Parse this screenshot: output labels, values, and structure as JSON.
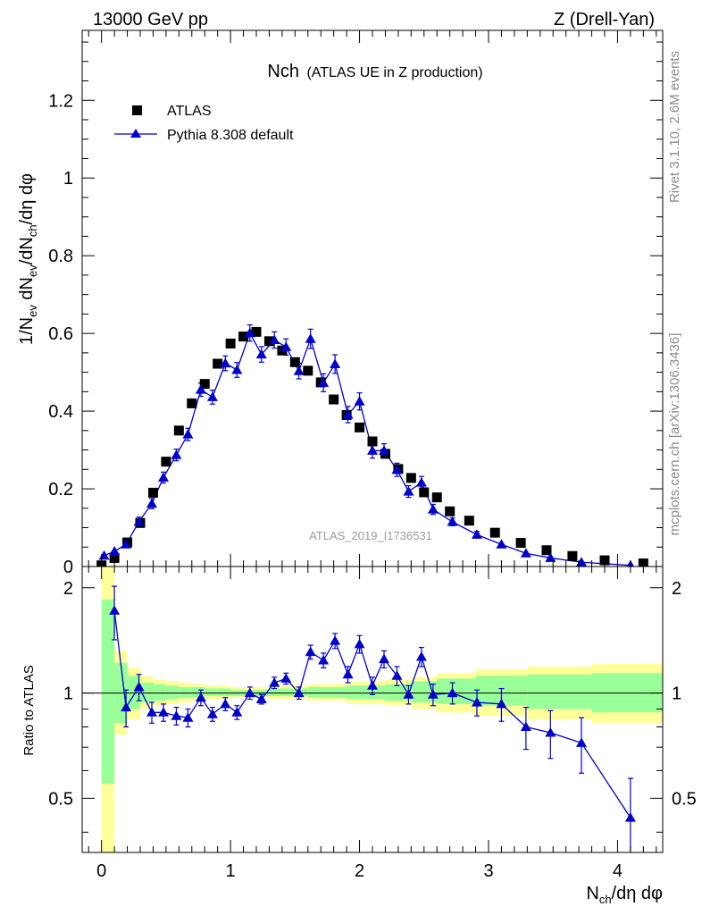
{
  "header": {
    "left": "13000 GeV pp",
    "right": "Z (Drell-Yan)"
  },
  "side_text": {
    "rivet": "Rivet 3.1.10,  2.6M events",
    "mcplots": "mcplots.cern.ch [arXiv:1306.3436]"
  },
  "chart_data": {
    "type": "scatter",
    "title": "Nch",
    "subtitle": "(ATLAS UE in Z production)",
    "watermark": "ATLAS_2019_I1736531",
    "xlabel": "N_ch/dη dφ",
    "ylabel": "1/N_ev dN_ev/dN_ch/dη dφ",
    "ratio_ylabel": "Ratio to ATLAS",
    "xlim": [
      -0.15,
      4.35
    ],
    "ylim": [
      0,
      1.38
    ],
    "ratio_ylim": [
      0.35,
      2.3
    ],
    "ratio_scale": "log",
    "x_ticks": [
      0,
      1,
      2,
      3,
      4
    ],
    "y_ticks": [
      0,
      0.2,
      0.4,
      0.6,
      0.8,
      1,
      1.2
    ],
    "ratio_ticks": [
      0.5,
      1,
      2
    ],
    "legend_position": "top-left",
    "colors": {
      "data": "#000000",
      "mc": "#0000cc",
      "band_inner": "#99ff99",
      "band_outer": "#ffff99"
    },
    "series": [
      {
        "name": "ATLAS",
        "style": "black squares",
        "points": [
          [
            0.0,
            0.003
          ],
          [
            0.1,
            0.022
          ],
          [
            0.2,
            0.062
          ],
          [
            0.3,
            0.112
          ],
          [
            0.4,
            0.19
          ],
          [
            0.5,
            0.27
          ],
          [
            0.6,
            0.35
          ],
          [
            0.7,
            0.42
          ],
          [
            0.8,
            0.47
          ],
          [
            0.9,
            0.522
          ],
          [
            1.0,
            0.574
          ],
          [
            1.1,
            0.592
          ],
          [
            1.2,
            0.604
          ],
          [
            1.3,
            0.58
          ],
          [
            1.4,
            0.556
          ],
          [
            1.5,
            0.526
          ],
          [
            1.6,
            0.504
          ],
          [
            1.7,
            0.474
          ],
          [
            1.8,
            0.43
          ],
          [
            1.9,
            0.39
          ],
          [
            2.0,
            0.358
          ],
          [
            2.1,
            0.322
          ],
          [
            2.2,
            0.29
          ],
          [
            2.3,
            0.251
          ],
          [
            2.4,
            0.228
          ],
          [
            2.5,
            0.191
          ],
          [
            2.6,
            0.178
          ],
          [
            2.7,
            0.142
          ],
          [
            2.85,
            0.118
          ],
          [
            3.05,
            0.087
          ],
          [
            3.25,
            0.061
          ],
          [
            3.45,
            0.042
          ],
          [
            3.65,
            0.027
          ],
          [
            3.9,
            0.016
          ],
          [
            4.2,
            0.008
          ]
        ]
      },
      {
        "name": "Pythia 8.308 default",
        "style": "blue triangles with line",
        "points": [
          [
            0.02,
            0.028,
            0.005
          ],
          [
            0.1,
            0.039,
            0.006
          ],
          [
            0.19,
            0.057,
            0.008
          ],
          [
            0.29,
            0.115,
            0.012
          ],
          [
            0.39,
            0.162,
            0.013
          ],
          [
            0.48,
            0.229,
            0.014
          ],
          [
            0.58,
            0.287,
            0.015
          ],
          [
            0.67,
            0.34,
            0.016
          ],
          [
            0.77,
            0.455,
            0.017
          ],
          [
            0.86,
            0.436,
            0.018
          ],
          [
            0.96,
            0.523,
            0.019
          ],
          [
            1.05,
            0.506,
            0.019
          ],
          [
            1.15,
            0.601,
            0.021
          ],
          [
            1.24,
            0.546,
            0.02
          ],
          [
            1.34,
            0.583,
            0.021
          ],
          [
            1.43,
            0.565,
            0.021
          ],
          [
            1.53,
            0.503,
            0.02
          ],
          [
            1.62,
            0.586,
            0.025
          ],
          [
            1.72,
            0.473,
            0.023
          ],
          [
            1.81,
            0.521,
            0.024
          ],
          [
            1.91,
            0.391,
            0.021
          ],
          [
            2.0,
            0.425,
            0.022
          ],
          [
            2.1,
            0.298,
            0.019
          ],
          [
            2.19,
            0.298,
            0.018
          ],
          [
            2.29,
            0.249,
            0.017
          ],
          [
            2.38,
            0.193,
            0.015
          ],
          [
            2.48,
            0.216,
            0.016
          ],
          [
            2.57,
            0.147,
            0.013
          ],
          [
            2.72,
            0.115,
            0.01
          ],
          [
            2.91,
            0.082,
            0.008
          ],
          [
            3.1,
            0.057,
            0.006
          ],
          [
            3.29,
            0.034,
            0.005
          ],
          [
            3.48,
            0.022,
            0.004
          ],
          [
            3.72,
            0.011,
            0.003
          ],
          [
            4.1,
            0.003,
            0.001
          ]
        ]
      }
    ],
    "ratio_series": {
      "name": "Pythia 8.308 default",
      "points": [
        [
          0.1,
          1.72,
          0.3
        ],
        [
          0.19,
          0.91,
          0.11
        ],
        [
          0.29,
          1.04,
          0.09
        ],
        [
          0.39,
          0.88,
          0.06
        ],
        [
          0.48,
          0.88,
          0.05
        ],
        [
          0.58,
          0.86,
          0.05
        ],
        [
          0.67,
          0.85,
          0.05
        ],
        [
          0.77,
          0.97,
          0.05
        ],
        [
          0.86,
          0.87,
          0.04
        ],
        [
          0.96,
          0.93,
          0.04
        ],
        [
          1.05,
          0.88,
          0.04
        ],
        [
          1.15,
          1.0,
          0.04
        ],
        [
          1.24,
          0.96,
          0.03
        ],
        [
          1.34,
          1.07,
          0.04
        ],
        [
          1.43,
          1.1,
          0.04
        ],
        [
          1.53,
          1.0,
          0.04
        ],
        [
          1.62,
          1.31,
          0.06
        ],
        [
          1.72,
          1.24,
          0.06
        ],
        [
          1.81,
          1.41,
          0.07
        ],
        [
          1.91,
          1.13,
          0.06
        ],
        [
          2.0,
          1.38,
          0.08
        ],
        [
          2.1,
          1.05,
          0.06
        ],
        [
          2.19,
          1.25,
          0.07
        ],
        [
          2.29,
          1.12,
          0.07
        ],
        [
          2.38,
          0.99,
          0.06
        ],
        [
          2.48,
          1.27,
          0.08
        ],
        [
          2.57,
          0.99,
          0.07
        ],
        [
          2.72,
          1.0,
          0.07
        ],
        [
          2.91,
          0.94,
          0.08
        ],
        [
          3.1,
          0.93,
          0.1
        ],
        [
          3.29,
          0.8,
          0.11
        ],
        [
          3.48,
          0.77,
          0.12
        ],
        [
          3.72,
          0.72,
          0.13
        ],
        [
          4.1,
          0.44,
          0.13
        ]
      ]
    },
    "ratio_bands": [
      [
        0.0,
        0.1,
        0.55,
        1.85,
        0.3,
        2.35
      ],
      [
        0.1,
        0.2,
        0.82,
        1.22,
        0.76,
        1.32
      ],
      [
        0.2,
        0.3,
        0.9,
        1.12,
        0.84,
        1.18
      ],
      [
        0.3,
        0.4,
        0.94,
        1.07,
        0.9,
        1.12
      ],
      [
        0.4,
        0.5,
        0.95,
        1.06,
        0.92,
        1.09
      ],
      [
        0.5,
        0.6,
        0.96,
        1.05,
        0.93,
        1.08
      ],
      [
        0.6,
        0.7,
        0.97,
        1.04,
        0.94,
        1.07
      ],
      [
        0.7,
        0.8,
        0.97,
        1.04,
        0.95,
        1.06
      ],
      [
        0.8,
        0.9,
        0.98,
        1.03,
        0.96,
        1.05
      ],
      [
        0.9,
        1.0,
        0.98,
        1.03,
        0.96,
        1.05
      ],
      [
        1.0,
        1.3,
        0.98,
        1.02,
        0.97,
        1.04
      ],
      [
        1.3,
        1.6,
        0.98,
        1.03,
        0.96,
        1.05
      ],
      [
        1.6,
        1.9,
        0.97,
        1.04,
        0.95,
        1.06
      ],
      [
        1.9,
        2.2,
        0.96,
        1.05,
        0.93,
        1.08
      ],
      [
        2.2,
        2.4,
        0.95,
        1.06,
        0.92,
        1.09
      ],
      [
        2.4,
        2.6,
        0.94,
        1.08,
        0.9,
        1.11
      ],
      [
        2.6,
        2.9,
        0.93,
        1.1,
        0.88,
        1.14
      ],
      [
        2.9,
        3.3,
        0.92,
        1.12,
        0.86,
        1.17
      ],
      [
        3.3,
        3.8,
        0.9,
        1.13,
        0.84,
        1.19
      ],
      [
        3.8,
        4.35,
        0.88,
        1.14,
        0.82,
        1.21
      ]
    ]
  }
}
